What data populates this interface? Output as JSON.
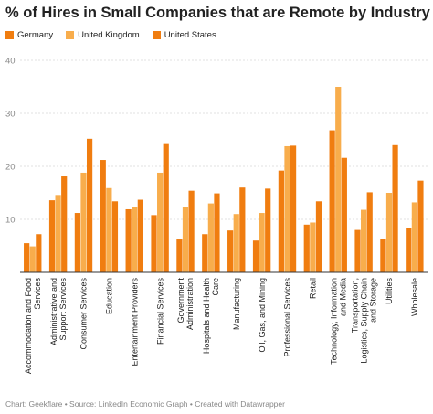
{
  "title": "% of Hires in Small Companies that are Remote by Industry",
  "footer": "Chart: Geekflare • Source: LinkedIn Economic Graph • Created with Datawrapper",
  "colors": {
    "Germany": "#f07d10",
    "United Kingdom": "#f8ad4c",
    "United States": "#f07d10"
  },
  "chart_data": {
    "type": "bar",
    "title": "% of Hires in Small Companies that are Remote by Industry",
    "ylim": [
      0,
      40
    ],
    "yticks": [
      10,
      20,
      30,
      40
    ],
    "grid": true,
    "legend": "top-left",
    "categories": [
      "Accommodation and Food Services",
      "Administrative and Support Services",
      "Consumer Services",
      "Education",
      "Entertainment Providers",
      "Financial Services",
      "Government Administration",
      "Hospitals and Health Care",
      "Manufacturing",
      "Oil, Gas, and Mining",
      "Professional Services",
      "Retail",
      "Technology, Information and Media",
      "Transportation, Logistics, Supply Chain and Storage",
      "Utilities",
      "Wholesale"
    ],
    "series": [
      {
        "name": "Germany",
        "values": [
          5.5,
          13.6,
          11.2,
          21.2,
          11.9,
          10.8,
          6.2,
          7.2,
          7.9,
          6.0,
          19.2,
          9.0,
          26.8,
          8.0,
          6.3,
          8.3
        ]
      },
      {
        "name": "United Kingdom",
        "values": [
          4.9,
          14.6,
          18.8,
          15.9,
          12.4,
          18.8,
          12.3,
          13.0,
          11.0,
          11.2,
          23.8,
          9.4,
          35.0,
          11.8,
          15.0,
          13.2
        ]
      },
      {
        "name": "United States",
        "values": [
          7.2,
          18.1,
          25.2,
          13.4,
          13.7,
          24.2,
          15.4,
          14.9,
          16.0,
          15.8,
          23.9,
          13.4,
          21.6,
          15.1,
          24.0,
          17.3
        ]
      }
    ]
  }
}
